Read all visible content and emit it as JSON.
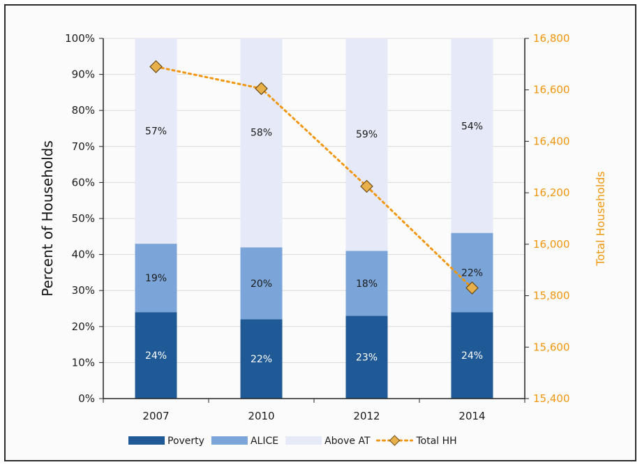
{
  "chart_data": {
    "type": "bar",
    "stacked": true,
    "categories": [
      "2007",
      "2010",
      "2012",
      "2014"
    ],
    "series": [
      {
        "name": "Poverty",
        "values": [
          24,
          22,
          23,
          24
        ],
        "labels": [
          "24%",
          "22%",
          "23%",
          "24%"
        ],
        "color": "#1f5a96"
      },
      {
        "name": "ALICE",
        "values": [
          19,
          20,
          18,
          22
        ],
        "labels": [
          "19%",
          "20%",
          "18%",
          "22%"
        ],
        "color": "#7ba5d8"
      },
      {
        "name": "Above AT",
        "values": [
          57,
          58,
          59,
          54
        ],
        "labels": [
          "57%",
          "58%",
          "59%",
          "54%"
        ],
        "color": "#e6e9f7"
      }
    ],
    "line_series": {
      "name": "Total HH",
      "axis": "right",
      "values": [
        16690,
        16605,
        16225,
        15830
      ],
      "color": "#f0960f",
      "marker_color": "#e8b04a"
    },
    "ylabel": "Percent of Households",
    "y2label": "Total Households",
    "ylim": [
      0,
      100
    ],
    "y2lim": [
      15400,
      16800
    ],
    "y_ticks": [
      "0%",
      "10%",
      "20%",
      "30%",
      "40%",
      "50%",
      "60%",
      "70%",
      "80%",
      "90%",
      "100%"
    ],
    "y2_ticks": [
      "15,400",
      "15,600",
      "15,800",
      "16,000",
      "16,200",
      "16,400",
      "16,600",
      "16,800"
    ],
    "grid": true,
    "legend": "bottom"
  }
}
